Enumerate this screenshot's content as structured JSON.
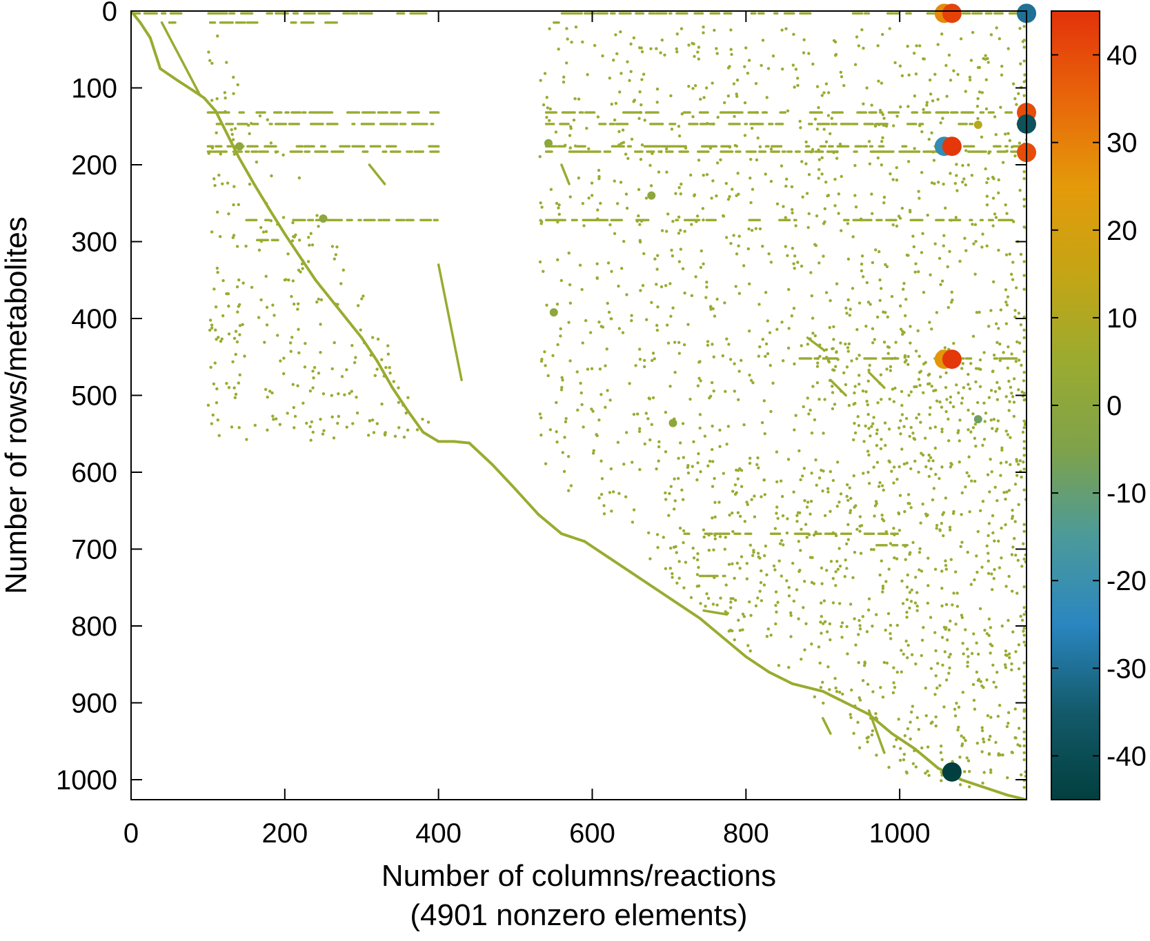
{
  "chart_data": {
    "type": "scatter",
    "title": "",
    "xlabel": "Number of columns/reactions",
    "xlabel_line2": "(4901 nonzero elements)",
    "ylabel": "Number of rows/metabolites",
    "xlim": [
      0,
      1165
    ],
    "ylim": [
      1026,
      0
    ],
    "x_ticks": [
      "0",
      "200",
      "400",
      "600",
      "800",
      "1000"
    ],
    "y_ticks": [
      "0",
      "100",
      "200",
      "300",
      "400",
      "500",
      "600",
      "700",
      "800",
      "900",
      "1000"
    ],
    "colorbar": {
      "range": [
        -45,
        45
      ],
      "ticks": [
        "40",
        "30",
        "20",
        "10",
        "0",
        "-10",
        "-20",
        "-30",
        "-40"
      ],
      "colors": [
        "#023f3f",
        "#135a6a",
        "#2a86c0",
        "#4b9a9a",
        "#7fa24a",
        "#9aab30",
        "#c4a515",
        "#e49a0a",
        "#e8660a",
        "#e3320a"
      ]
    },
    "grid": false,
    "point_color": "#9aab30",
    "diagonal": [
      [
        0,
        0
      ],
      [
        12,
        15
      ],
      [
        25,
        35
      ],
      [
        38,
        75
      ],
      [
        60,
        90
      ],
      [
        80,
        103
      ],
      [
        95,
        113
      ],
      [
        110,
        130
      ],
      [
        125,
        160
      ],
      [
        140,
        190
      ],
      [
        160,
        225
      ],
      [
        180,
        258
      ],
      [
        200,
        290
      ],
      [
        220,
        320
      ],
      [
        240,
        350
      ],
      [
        260,
        375
      ],
      [
        280,
        400
      ],
      [
        300,
        425
      ],
      [
        320,
        455
      ],
      [
        340,
        490
      ],
      [
        360,
        520
      ],
      [
        380,
        548
      ],
      [
        400,
        560
      ],
      [
        420,
        560
      ],
      [
        440,
        562
      ],
      [
        470,
        590
      ],
      [
        500,
        622
      ],
      [
        530,
        655
      ],
      [
        560,
        680
      ],
      [
        590,
        690
      ],
      [
        620,
        710
      ],
      [
        650,
        730
      ],
      [
        680,
        750
      ],
      [
        710,
        770
      ],
      [
        740,
        790
      ],
      [
        770,
        815
      ],
      [
        800,
        840
      ],
      [
        830,
        860
      ],
      [
        860,
        875
      ],
      [
        900,
        885
      ],
      [
        930,
        900
      ],
      [
        960,
        915
      ],
      [
        990,
        940
      ],
      [
        1020,
        960
      ],
      [
        1050,
        985
      ],
      [
        1080,
        1000
      ],
      [
        1110,
        1010
      ],
      [
        1140,
        1020
      ],
      [
        1165,
        1026
      ]
    ],
    "stripes": [
      {
        "x": [
          40,
          90
        ],
        "y": [
          15,
          110
        ]
      },
      {
        "x": [
          310,
          330
        ],
        "y": [
          200,
          225
        ]
      },
      {
        "x": [
          400,
          430
        ],
        "y": [
          330,
          480
        ]
      },
      {
        "x": [
          560,
          570
        ],
        "y": [
          200,
          225
        ]
      },
      {
        "x": [
          880,
          900
        ],
        "y": [
          425,
          440
        ]
      },
      {
        "x": [
          910,
          930
        ],
        "y": [
          480,
          500
        ]
      },
      {
        "x": [
          960,
          980
        ],
        "y": [
          470,
          490
        ]
      },
      {
        "x": [
          900,
          910
        ],
        "y": [
          920,
          940
        ]
      },
      {
        "x": [
          960,
          980
        ],
        "y": [
          910,
          965
        ]
      },
      {
        "x": [
          745,
          775
        ],
        "y": [
          780,
          785
        ]
      }
    ],
    "rows": [
      {
        "y": 3,
        "x": [
          [
            0,
            390
          ],
          [
            540,
            1160
          ]
        ]
      },
      {
        "y": 15,
        "x": [
          [
            35,
            270
          ],
          [
            550,
            560
          ]
        ]
      },
      {
        "y": 132,
        "x": [
          [
            100,
            400
          ],
          [
            540,
            1160
          ]
        ]
      },
      {
        "y": 147,
        "x": [
          [
            100,
            400
          ],
          [
            540,
            1160
          ]
        ]
      },
      {
        "y": 176,
        "x": [
          [
            100,
            400
          ],
          [
            540,
            1160
          ]
        ]
      },
      {
        "y": 183,
        "x": [
          [
            100,
            400
          ],
          [
            540,
            1160
          ]
        ]
      },
      {
        "y": 272,
        "x": [
          [
            150,
            400
          ],
          [
            540,
            1160
          ]
        ]
      },
      {
        "y": 298,
        "x": [
          [
            150,
            200
          ]
        ]
      },
      {
        "y": 452,
        "x": [
          [
            870,
            1160
          ]
        ]
      },
      {
        "y": 680,
        "x": [
          [
            720,
            1000
          ]
        ]
      },
      {
        "y": 695,
        "x": [
          [
            970,
            1010
          ]
        ]
      },
      {
        "y": 735,
        "x": [
          [
            740,
            780
          ]
        ]
      }
    ],
    "big_points": [
      {
        "x": 1058,
        "y": 3,
        "v": 28
      },
      {
        "x": 1068,
        "y": 3,
        "v": 42
      },
      {
        "x": 1165,
        "y": 3,
        "v": 38
      },
      {
        "x": 1165,
        "y": 3,
        "v": -30
      },
      {
        "x": 1165,
        "y": 132,
        "v": 40
      },
      {
        "x": 1165,
        "y": 147,
        "v": -38
      },
      {
        "x": 1058,
        "y": 176,
        "v": -22
      },
      {
        "x": 1068,
        "y": 176,
        "v": 44
      },
      {
        "x": 1165,
        "y": 184,
        "v": 40
      },
      {
        "x": 1058,
        "y": 453,
        "v": 26
      },
      {
        "x": 1068,
        "y": 453,
        "v": 44
      },
      {
        "x": 1068,
        "y": 990,
        "v": -45
      }
    ],
    "medium_points": [
      {
        "x": 1102,
        "y": 531,
        "v": -8
      },
      {
        "x": 1102,
        "y": 148,
        "v": 12
      },
      {
        "x": 543,
        "y": 172,
        "v": 0
      },
      {
        "x": 677,
        "y": 240,
        "v": 0
      },
      {
        "x": 550,
        "y": 392,
        "v": 0
      },
      {
        "x": 705,
        "y": 536,
        "v": 0
      },
      {
        "x": 250,
        "y": 270,
        "v": 0
      },
      {
        "x": 141,
        "y": 176,
        "v": 0
      }
    ]
  }
}
